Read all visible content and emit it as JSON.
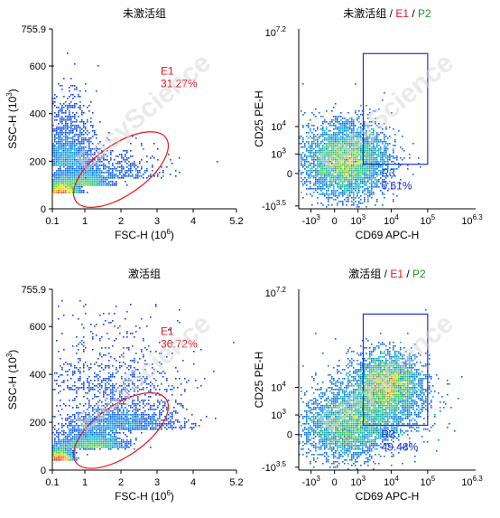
{
  "watermark": "EasyScience",
  "colors": {
    "gate": "#e8141b",
    "box": "#1f2fd6",
    "green": "#1a9a1a",
    "axis": "#000000"
  },
  "chart_data": [
    {
      "type": "scatter",
      "title": "未激活组",
      "xlabel": "FSC-H",
      "xlabel_unit": "(10",
      "xlabel_exp": "6",
      "ylabel": "SSC-H",
      "ylabel_unit": "(10",
      "ylabel_exp": "3",
      "x_ticks": [
        "0.1",
        "1",
        "2",
        "3",
        "4",
        "5.2"
      ],
      "x_tick_values": [
        0.1,
        1,
        2,
        3,
        4,
        5.2
      ],
      "y_ticks": [
        "0",
        "200",
        "400",
        "600",
        "755.9"
      ],
      "y_tick_values": [
        0,
        200,
        400,
        600,
        755.9
      ],
      "xlim": [
        0.1,
        5.2
      ],
      "ylim": [
        0,
        755.9
      ],
      "gate": {
        "name": "E1",
        "percent": "31.27%",
        "shape": "ellipse"
      },
      "populations": [
        {
          "cx": 0.35,
          "cy": 65,
          "sx": 0.22,
          "sy": 35,
          "n": 2300
        },
        {
          "cx": 0.95,
          "cy": 95,
          "sx": 0.35,
          "sy": 45,
          "n": 1400
        },
        {
          "cx": 0.5,
          "cy": 180,
          "sx": 0.35,
          "sy": 140,
          "n": 1500
        },
        {
          "cx": 1.7,
          "cy": 130,
          "sx": 0.7,
          "sy": 70,
          "n": 500
        }
      ]
    },
    {
      "type": "scatter",
      "title": "未激活组",
      "title_gates": [
        "E1",
        "P2"
      ],
      "xlabel": "CD69 APC-H",
      "ylabel": "CD25 PE-H",
      "x_ticks": [
        "-10",
        "0",
        "10",
        "10",
        "10"
      ],
      "x_tick_exps": [
        "3",
        "",
        "3",
        "4",
        "5"
      ],
      "x_tick_values": [
        -1000,
        0,
        1000,
        10000,
        100000
      ],
      "x_max_label": "10",
      "x_max_exp": "6.3",
      "y_ticks": [
        "-10",
        "0",
        "10",
        "10"
      ],
      "y_tick_exps": [
        "3.5",
        "",
        "3",
        "4"
      ],
      "y_tick_values": [
        -3162,
        0,
        1000,
        10000
      ],
      "y_max_label": "10",
      "y_max_exp": "7.2",
      "scale": "biexponential",
      "gate": {
        "name": "R3",
        "percent": "0.61%",
        "shape": "rectangle",
        "x": [
          1500,
          100000
        ],
        "y": [
          300,
          2500000
        ]
      },
      "populations": [
        {
          "cx": 300,
          "cy": 300,
          "sx": 0.55,
          "sy": 0.55,
          "n": 3200
        },
        {
          "cx": 350,
          "cy": 1500,
          "sx": 0.6,
          "sy": 0.6,
          "n": 1100
        }
      ]
    },
    {
      "type": "scatter",
      "title": "激活组",
      "xlabel": "FSC-H",
      "xlabel_unit": "(10",
      "xlabel_exp": "6",
      "ylabel": "SSC-H",
      "ylabel_unit": "(10",
      "ylabel_exp": "3",
      "x_ticks": [
        "0.1",
        "1",
        "2",
        "3",
        "4",
        "5.2"
      ],
      "x_tick_values": [
        0.1,
        1,
        2,
        3,
        4,
        5.2
      ],
      "y_ticks": [
        "0",
        "200",
        "400",
        "600",
        "755.9"
      ],
      "y_tick_values": [
        0,
        200,
        400,
        600,
        755.9
      ],
      "xlim": [
        0.1,
        5.2
      ],
      "ylim": [
        0,
        755.9
      ],
      "gate": {
        "name": "E1",
        "percent": "36.72%",
        "shape": "ellipse"
      },
      "populations": [
        {
          "cx": 0.3,
          "cy": 40,
          "sx": 0.18,
          "sy": 30,
          "n": 1800
        },
        {
          "cx": 1.2,
          "cy": 90,
          "sx": 0.45,
          "sy": 50,
          "n": 1800
        },
        {
          "cx": 2.0,
          "cy": 170,
          "sx": 0.8,
          "sy": 90,
          "n": 1400
        },
        {
          "cx": 1.5,
          "cy": 330,
          "sx": 1.1,
          "sy": 200,
          "n": 500
        }
      ]
    },
    {
      "type": "scatter",
      "title": "激活组",
      "title_gates": [
        "E1",
        "P2"
      ],
      "xlabel": "CD69 APC-H",
      "ylabel": "CD25 PE-H",
      "x_ticks": [
        "-10",
        "0",
        "10",
        "10",
        "10"
      ],
      "x_tick_exps": [
        "3",
        "",
        "3",
        "4",
        "5"
      ],
      "x_tick_values": [
        -1000,
        0,
        1000,
        10000,
        100000
      ],
      "x_max_label": "10",
      "x_max_exp": "6.3",
      "y_ticks": [
        "-10",
        "0",
        "10",
        "10"
      ],
      "y_tick_exps": [
        "3.5",
        "",
        "3",
        "4"
      ],
      "y_tick_values": [
        -3162,
        0,
        1000,
        10000
      ],
      "y_max_label": "10",
      "y_max_exp": "7.2",
      "scale": "biexponential",
      "gate": {
        "name": "R3",
        "percent": "49.48%",
        "shape": "rectangle",
        "x": [
          1500,
          100000
        ],
        "y": [
          300,
          2500000
        ]
      },
      "populations": [
        {
          "cx": 250,
          "cy": 250,
          "sx": 0.55,
          "sy": 0.55,
          "n": 2400
        },
        {
          "cx": 8000,
          "cy": 12000,
          "sx": 0.45,
          "sy": 0.5,
          "n": 2600
        },
        {
          "cx": 4000,
          "cy": 3000,
          "sx": 0.7,
          "sy": 0.7,
          "n": 1600
        }
      ]
    }
  ]
}
